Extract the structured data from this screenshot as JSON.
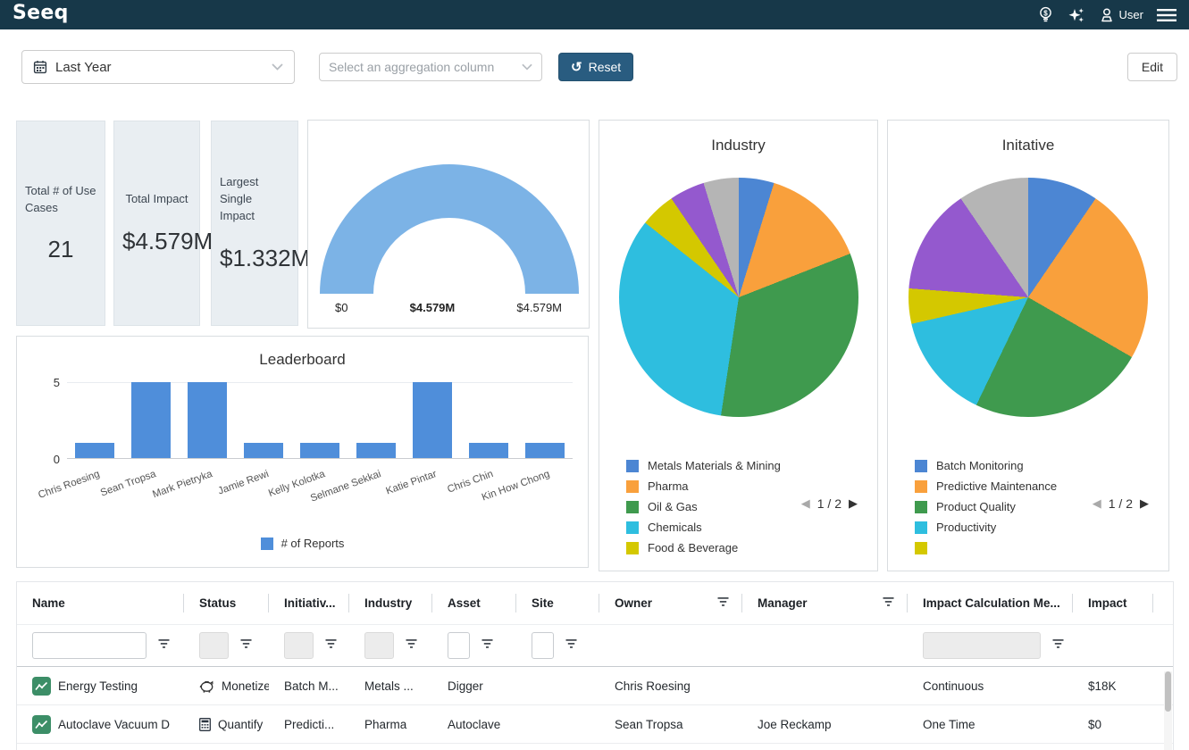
{
  "navbar": {
    "logo": "Seeq",
    "user_label": "User"
  },
  "filters": {
    "time_range": "Last Year",
    "aggregation_placeholder": "Select an aggregation column",
    "reset_label": "Reset",
    "edit_label": "Edit"
  },
  "icons": {
    "prev_arrow": "◀",
    "next_arrow": "▶",
    "reset_glyph": "↺"
  },
  "kpis": [
    {
      "label": "Total # of Use Cases",
      "value": "21"
    },
    {
      "label": "Total Impact",
      "value": "$4.579M"
    },
    {
      "label": "Largest Single Impact",
      "value": "$1.332M"
    }
  ],
  "chart_data": [
    {
      "id": "impact-gauge",
      "type": "gauge",
      "min": 0,
      "max": 4.579,
      "value": 4.579,
      "min_label": "$0",
      "value_label": "$4.579M",
      "max_label": "$4.579M",
      "color": "#7cb3e6"
    },
    {
      "id": "industry-pie",
      "type": "pie",
      "title": "Industry",
      "legend_page": "1 / 2",
      "legend_visible_count": 5,
      "legend_position": "bottom-left",
      "slices": [
        {
          "label": "Metals Materials & Mining",
          "value": 1,
          "color": "#4c86d3"
        },
        {
          "label": "Pharma",
          "value": 3,
          "color": "#f9a03c"
        },
        {
          "label": "Oil & Gas",
          "value": 7,
          "color": "#3f9a4e"
        },
        {
          "label": "Chemicals",
          "value": 7,
          "color": "#2ebedf"
        },
        {
          "label": "Food & Beverage",
          "value": 1,
          "color": "#d4c800"
        },
        {
          "label": "",
          "value": 1,
          "color": "#9459ce"
        },
        {
          "label": "",
          "value": 1,
          "color": "#b5b5b5"
        }
      ]
    },
    {
      "id": "initiative-pie",
      "type": "pie",
      "title": "Initative",
      "legend_page": "1 / 2",
      "legend_visible_count": 5,
      "legend_position": "bottom-left",
      "slices": [
        {
          "label": "Batch Monitoring",
          "value": 2,
          "color": "#4c86d3"
        },
        {
          "label": "Predictive Maintenance",
          "value": 5,
          "color": "#f9a03c"
        },
        {
          "label": "Product Quality",
          "value": 5,
          "color": "#3f9a4e"
        },
        {
          "label": "Productivity",
          "value": 3,
          "color": "#2ebedf"
        },
        {
          "label": "",
          "value": 1,
          "color": "#d4c800"
        },
        {
          "label": "",
          "value": 3,
          "color": "#9459ce"
        },
        {
          "label": "",
          "value": 2,
          "color": "#b5b5b5"
        }
      ]
    },
    {
      "id": "leaderboard",
      "type": "bar",
      "title": "Leaderboard",
      "categories": [
        "Chris Roesing",
        "Sean Tropsa",
        "Mark Pietryka",
        "Jamie Rewi",
        "Kelly Kolotka",
        "Selmane Sekkai",
        "Katie Pintar",
        "Chris Chin",
        "Kin How Chong"
      ],
      "values": [
        1,
        5,
        5,
        1,
        1,
        1,
        5,
        1,
        1
      ],
      "legend": "# of Reports",
      "ylim": [
        0,
        5
      ],
      "yticks": [
        0,
        5
      ],
      "color": "#4f8eda",
      "grid": true,
      "legend_position": "bottom-center"
    }
  ],
  "table": {
    "columns": [
      {
        "label": "Name",
        "key": "name",
        "filter": "text-wide",
        "filter_funnel": true,
        "header_funnel": false
      },
      {
        "label": "Status",
        "key": "status",
        "filter": "select-small",
        "filter_funnel": true,
        "header_funnel": false
      },
      {
        "label": "Initiativ...",
        "key": "initiative",
        "filter": "select-small",
        "filter_funnel": true,
        "header_funnel": false
      },
      {
        "label": "Industry",
        "key": "industry",
        "filter": "select-small",
        "filter_funnel": true,
        "header_funnel": false
      },
      {
        "label": "Asset",
        "key": "asset",
        "filter": "text-small",
        "filter_funnel": true,
        "header_funnel": false
      },
      {
        "label": "Site",
        "key": "site",
        "filter": "text-small",
        "filter_funnel": true,
        "header_funnel": false
      },
      {
        "label": "Owner",
        "key": "owner",
        "filter": "none",
        "filter_funnel": false,
        "header_funnel": true
      },
      {
        "label": "Manager",
        "key": "manager",
        "filter": "none",
        "filter_funnel": false,
        "header_funnel": true
      },
      {
        "label": "Impact Calculation Me...",
        "key": "impact_method",
        "filter": "select-wide",
        "filter_funnel": true,
        "header_funnel": false
      },
      {
        "label": "Impact",
        "key": "impact",
        "filter": "none",
        "filter_funnel": false,
        "header_funnel": false
      }
    ],
    "rows": [
      {
        "name": "Energy Testing",
        "name_icon": "analysis-icon",
        "status": "Monetize",
        "status_icon": "piggy-bank-icon",
        "initiative": "Batch M...",
        "industry": "Metals ...",
        "asset": "Digger",
        "site": "",
        "owner": "Chris Roesing",
        "manager": "",
        "impact_method": "Continuous",
        "impact": "$18K"
      },
      {
        "name": "Autoclave Vacuum D",
        "name_icon": "analysis-icon",
        "status": "Quantify",
        "status_icon": "calculator-icon",
        "initiative": "Predicti...",
        "industry": "Pharma",
        "asset": "Autoclave",
        "site": "",
        "owner": "Sean Tropsa",
        "manager": "Joe Reckamp",
        "impact_method": "One Time",
        "impact": "$0"
      }
    ]
  }
}
